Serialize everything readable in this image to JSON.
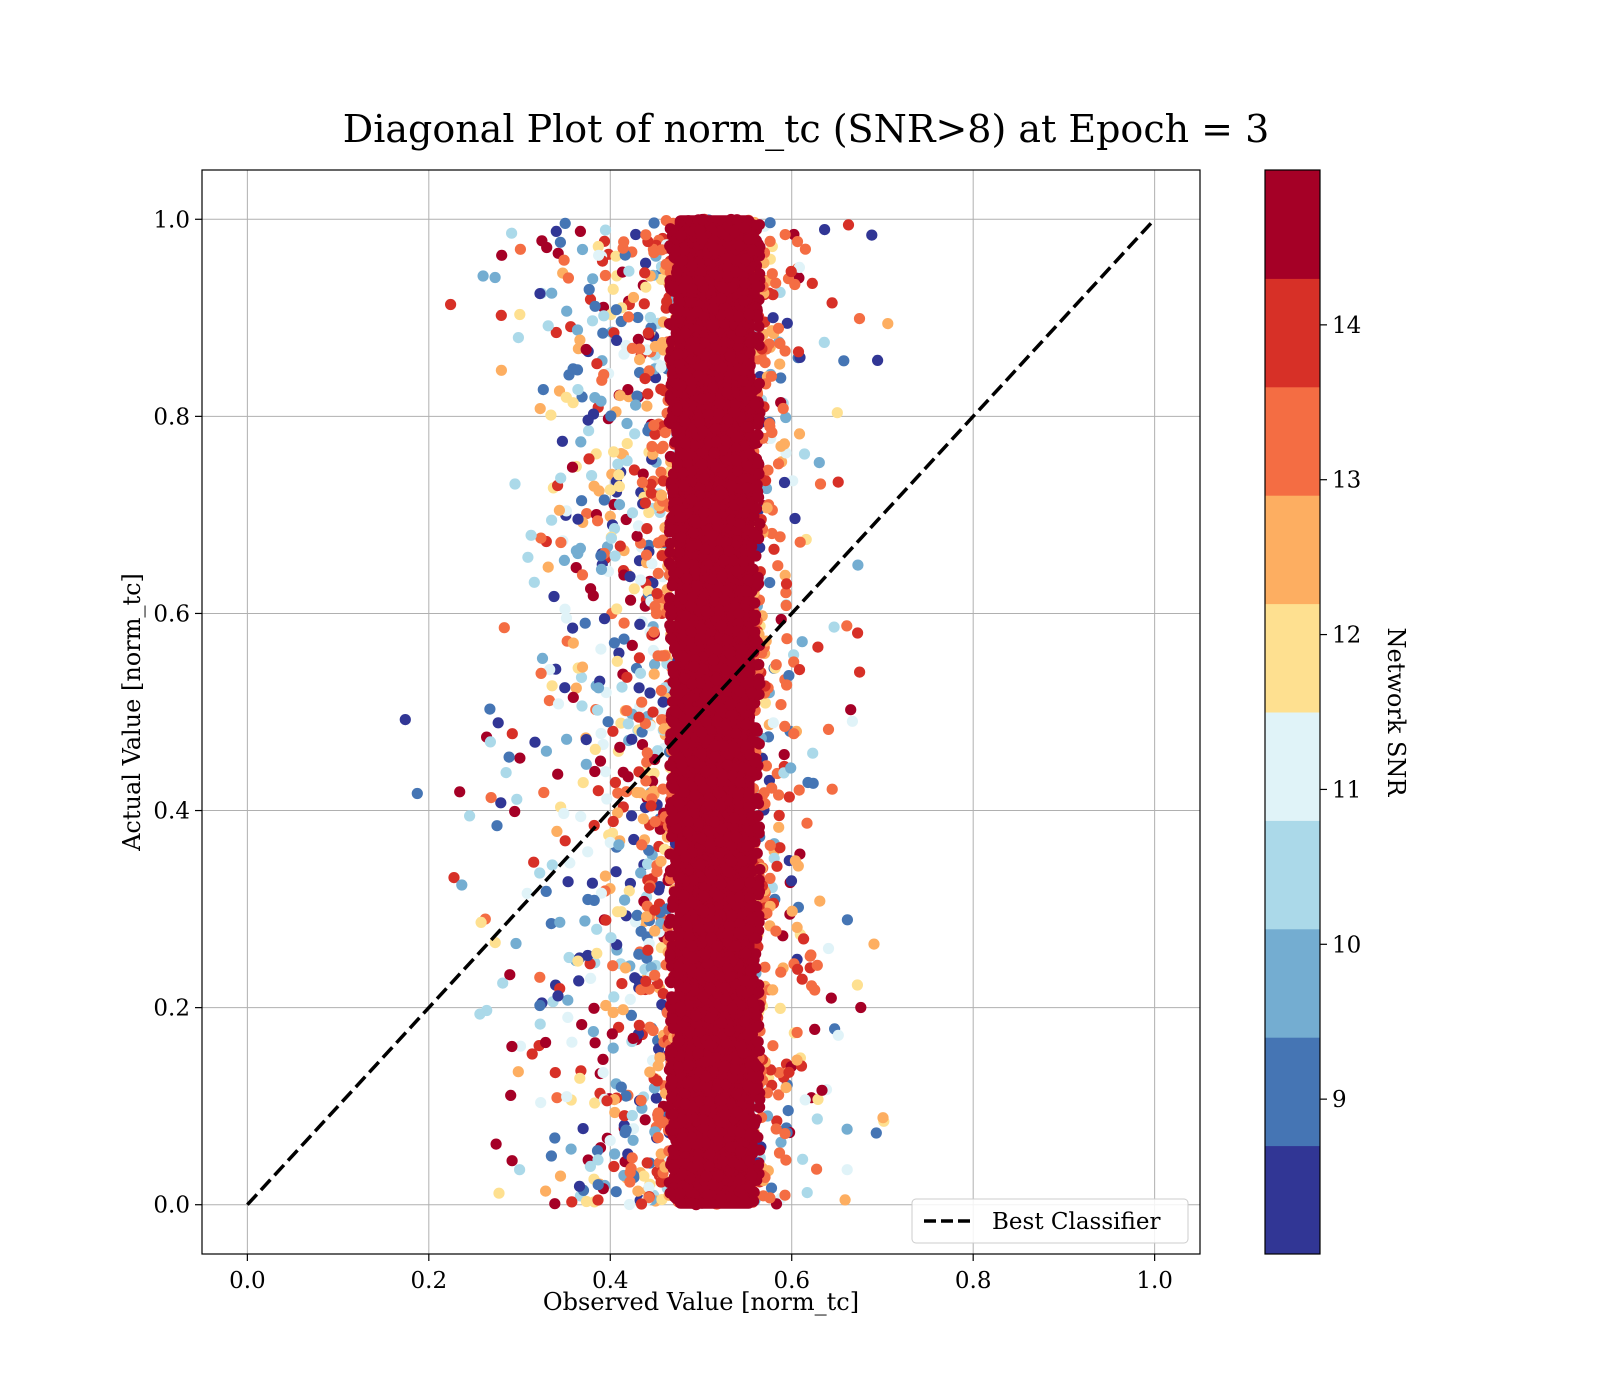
{
  "chart_data": {
    "type": "scatter",
    "title": "Diagonal Plot of norm_tc (SNR>8) at Epoch = 3",
    "xlabel": "Observed Value [norm_tc]",
    "ylabel": "Actual Value [norm_tc]",
    "xlim": [
      -0.05,
      1.05
    ],
    "ylim": [
      -0.05,
      1.05
    ],
    "xticks": [
      0.0,
      0.2,
      0.4,
      0.6,
      0.8,
      1.0
    ],
    "yticks": [
      0.0,
      0.2,
      0.4,
      0.6,
      0.8,
      1.0
    ],
    "xtick_labels": [
      "0.0",
      "0.2",
      "0.4",
      "0.6",
      "0.8",
      "1.0"
    ],
    "ytick_labels": [
      "0.0",
      "0.2",
      "0.4",
      "0.6",
      "0.8",
      "1.0"
    ],
    "grid": true,
    "legend": {
      "placement": "lower-right",
      "entries": [
        {
          "label": "Best Classifier",
          "style": "dashed",
          "color": "#000000"
        }
      ]
    },
    "reference_line": {
      "label": "Best Classifier",
      "x": [
        0.0,
        1.0
      ],
      "y": [
        0.0,
        1.0
      ]
    },
    "scatter_distribution": {
      "x_range": [
        0.16,
        0.71
      ],
      "y_range": [
        0.0,
        1.0
      ],
      "dense_band_center_x": 0.515,
      "dense_band_half_width_x": 0.05,
      "dense_band_snr": "above 14"
    },
    "colorbar": {
      "label": "Network SNR",
      "range": [
        8,
        15
      ],
      "tick_values": [
        9,
        10,
        11,
        12,
        13,
        14
      ],
      "tick_labels": [
        "9",
        "10",
        "11",
        "12",
        "13",
        "14"
      ],
      "colors": [
        "#313695",
        "#4575b4",
        "#74add1",
        "#abd9e9",
        "#e0f3f8",
        "#fee090",
        "#fdae61",
        "#f46d43",
        "#d73027",
        "#a50026"
      ]
    }
  }
}
